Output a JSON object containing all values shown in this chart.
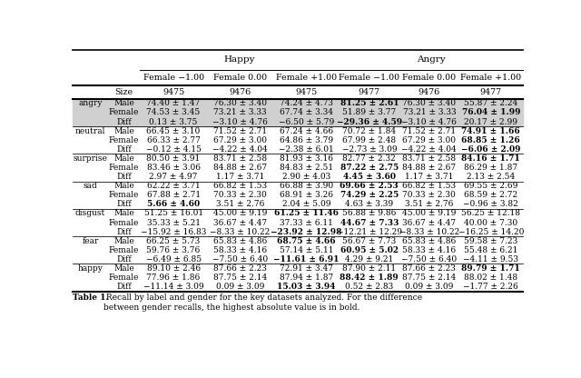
{
  "title_happy": "Happy",
  "title_angry": "Angry",
  "col_headers": [
    "Female −1.00",
    "Female 0.00",
    "Female +1.00",
    "Female −1.00",
    "Female 0.00",
    "Female +1.00"
  ],
  "size_row": [
    "9475",
    "9476",
    "9475",
    "9477",
    "9476",
    "9477"
  ],
  "emotions": [
    "angry",
    "neutral",
    "surprise",
    "sad",
    "disgust",
    "fear",
    "happy"
  ],
  "rows": {
    "angry": {
      "Male": [
        "74.40 ± 1.47",
        "76.30 ± 3.40",
        "74.24 ± 4.73",
        "81.25 ± 2.61",
        "76.30 ± 3.40",
        "55.87 ± 2.24"
      ],
      "Female": [
        "74.53 ± 3.45",
        "73.21 ± 3.33",
        "67.74 ± 3.34",
        "51.89 ± 3.77",
        "73.21 ± 3.33",
        "76.04 ± 1.99"
      ],
      "Diff": [
        "0.13 ± 3.75",
        "−3.10 ± 4.76",
        "−6.50 ± 5.79",
        "−29.36 ± 4.59",
        "−3.10 ± 4.76",
        "20.17 ± 2.99"
      ]
    },
    "neutral": {
      "Male": [
        "66.45 ± 3.10",
        "71.52 ± 2.71",
        "67.24 ± 4.66",
        "70.72 ± 1.84",
        "71.52 ± 2.71",
        "74.91 ± 1.66"
      ],
      "Female": [
        "66.33 ± 2.77",
        "67.29 ± 3.00",
        "64.86 ± 3.79",
        "67.99 ± 2.48",
        "67.29 ± 3.00",
        "68.85 ± 1.26"
      ],
      "Diff": [
        "−0.12 ± 4.15",
        "−4.22 ± 4.04",
        "−2.38 ± 6.01",
        "−2.73 ± 3.09",
        "−4.22 ± 4.04",
        "−6.06 ± 2.09"
      ]
    },
    "surprise": {
      "Male": [
        "80.50 ± 3.91",
        "83.71 ± 2.58",
        "81.93 ± 3.16",
        "82.77 ± 2.32",
        "83.71 ± 2.58",
        "84.16 ± 1.71"
      ],
      "Female": [
        "83.46 ± 3.06",
        "84.88 ± 2.67",
        "84.83 ± 2.51",
        "87.22 ± 2.75",
        "84.88 ± 2.67",
        "86.29 ± 1.87"
      ],
      "Diff": [
        "2.97 ± 4.97",
        "1.17 ± 3.71",
        "2.90 ± 4.03",
        "4.45 ± 3.60",
        "1.17 ± 3.71",
        "2.13 ± 2.54"
      ]
    },
    "sad": {
      "Male": [
        "62.22 ± 3.71",
        "66.82 ± 1.53",
        "66.88 ± 3.90",
        "69.66 ± 2.53",
        "66.82 ± 1.53",
        "69.55 ± 2.69"
      ],
      "Female": [
        "67.88 ± 2.71",
        "70.33 ± 2.30",
        "68.91 ± 3.26",
        "74.29 ± 2.25",
        "70.33 ± 2.30",
        "68.59 ± 2.72"
      ],
      "Diff": [
        "5.66 ± 4.60",
        "3.51 ± 2.76",
        "2.04 ± 5.09",
        "4.63 ± 3.39",
        "3.51 ± 2.76",
        "−0.96 ± 3.82"
      ]
    },
    "disgust": {
      "Male": [
        "51.25 ± 16.01",
        "45.00 ± 9.19",
        "61.25 ± 11.46",
        "56.88 ± 9.86",
        "45.00 ± 9.19",
        "56.25 ± 12.18"
      ],
      "Female": [
        "35.33 ± 5.21",
        "36.67 ± 4.47",
        "37.33 ± 6.11",
        "44.67 ± 7.33",
        "36.67 ± 4.47",
        "40.00 ± 7.30"
      ],
      "Diff": [
        "−15.92 ± 16.83",
        "−8.33 ± 10.22",
        "−23.92 ± 12.98",
        "−12.21 ± 12.29",
        "−8.33 ± 10.22",
        "−16.25 ± 14.20"
      ]
    },
    "fear": {
      "Male": [
        "66.25 ± 5.73",
        "65.83 ± 4.86",
        "68.75 ± 4.66",
        "56.67 ± 7.73",
        "65.83 ± 4.86",
        "59.58 ± 7.23"
      ],
      "Female": [
        "59.76 ± 3.76",
        "58.33 ± 4.16",
        "57.14 ± 5.11",
        "60.95 ± 5.02",
        "58.33 ± 4.16",
        "55.48 ± 6.21"
      ],
      "Diff": [
        "−6.49 ± 6.85",
        "−7.50 ± 6.40",
        "−11.61 ± 6.91",
        "4.29 ± 9.21",
        "−7.50 ± 6.40",
        "−4.11 ± 9.53"
      ]
    },
    "happy": {
      "Male": [
        "89.10 ± 2.46",
        "87.66 ± 2.23",
        "72.91 ± 3.47",
        "87.90 ± 2.11",
        "87.66 ± 2.23",
        "89.79 ± 1.71"
      ],
      "Female": [
        "77.96 ± 1.86",
        "87.75 ± 2.14",
        "87.94 ± 1.87",
        "88.42 ± 1.89",
        "87.75 ± 2.14",
        "88.02 ± 1.48"
      ],
      "Diff": [
        "−11.14 ± 3.09",
        "0.09 ± 3.09",
        "15.03 ± 3.94",
        "0.52 ± 2.83",
        "0.09 ± 3.09",
        "−1.77 ± 2.26"
      ]
    }
  },
  "bold_cells": {
    "angry": {
      "Male": [
        false,
        false,
        false,
        true,
        false,
        false
      ],
      "Female": [
        false,
        false,
        false,
        false,
        false,
        true
      ],
      "Diff": [
        false,
        false,
        false,
        true,
        false,
        false
      ]
    },
    "neutral": {
      "Male": [
        false,
        false,
        false,
        false,
        false,
        true
      ],
      "Female": [
        false,
        false,
        false,
        false,
        false,
        true
      ],
      "Diff": [
        false,
        false,
        false,
        false,
        false,
        true
      ]
    },
    "surprise": {
      "Male": [
        false,
        false,
        false,
        false,
        false,
        true
      ],
      "Female": [
        false,
        false,
        false,
        true,
        false,
        false
      ],
      "Diff": [
        false,
        false,
        false,
        true,
        false,
        false
      ]
    },
    "sad": {
      "Male": [
        false,
        false,
        false,
        true,
        false,
        false
      ],
      "Female": [
        false,
        false,
        false,
        true,
        false,
        false
      ],
      "Diff": [
        true,
        false,
        false,
        false,
        false,
        false
      ]
    },
    "disgust": {
      "Male": [
        false,
        false,
        true,
        false,
        false,
        false
      ],
      "Female": [
        false,
        false,
        false,
        true,
        false,
        false
      ],
      "Diff": [
        false,
        false,
        true,
        false,
        false,
        false
      ]
    },
    "fear": {
      "Male": [
        false,
        false,
        true,
        false,
        false,
        false
      ],
      "Female": [
        false,
        false,
        false,
        true,
        false,
        false
      ],
      "Diff": [
        false,
        false,
        true,
        false,
        false,
        false
      ]
    },
    "happy": {
      "Male": [
        false,
        false,
        false,
        false,
        false,
        true
      ],
      "Female": [
        false,
        false,
        false,
        true,
        false,
        false
      ],
      "Diff": [
        false,
        false,
        true,
        false,
        false,
        false
      ]
    }
  },
  "caption_bold": "Table 1.",
  "caption_normal": " Recall by label and gender for the key datasets analyzed. For the difference\nbetween gender recalls, the highest absolute value is in bold."
}
